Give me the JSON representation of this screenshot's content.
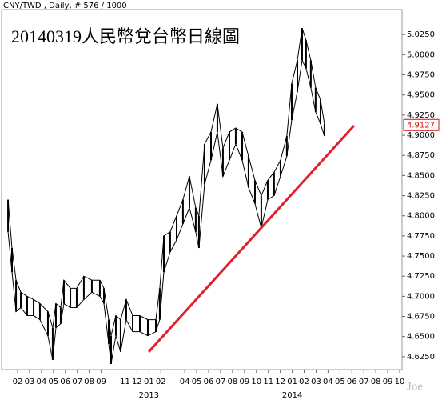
{
  "chart_data": {
    "type": "range-bars",
    "header": "CNY/TWD , Daily, # 576 / 1000",
    "title": "20140319人民幣兌台幣日線圖",
    "watermark": "Joe",
    "color": "#000000",
    "x": [
      1.2,
      1.53,
      1.87,
      2.27,
      2.8,
      3.34,
      3.87,
      4.54,
      4.94,
      5.21,
      5.61,
      5.88,
      6.42,
      6.95,
      7.55,
      8.22,
      8.89,
      9.23,
      9.63,
      9.83,
      10.23,
      10.63,
      11.1,
      11.64,
      12.24,
      12.91,
      13.58,
      13.91,
      14.25,
      14.78,
      15.32,
      15.85,
      16.39,
      16.92,
      17.19,
      17.66,
      18.2,
      18.73,
      19.2,
      19.74,
      20.27,
      20.81,
      21.34,
      21.88,
      22.41,
      22.95,
      23.48,
      24.02,
      24.55,
      24.96,
      25.43,
      25.83,
      26.16,
      26.56,
      26.96,
      27.37,
      27.7
    ],
    "series": [
      {
        "name": "high",
        "values": [
          4.82,
          4.76,
          4.72,
          4.705,
          4.7,
          4.696,
          4.691,
          4.681,
          4.661,
          4.691,
          4.686,
          4.72,
          4.71,
          4.71,
          4.725,
          4.72,
          4.72,
          4.71,
          4.671,
          4.651,
          4.676,
          4.671,
          4.696,
          4.676,
          4.676,
          4.671,
          4.671,
          4.71,
          4.775,
          4.78,
          4.8,
          4.82,
          4.849,
          4.81,
          4.8,
          4.889,
          4.904,
          4.939,
          4.884,
          4.904,
          4.909,
          4.904,
          4.874,
          4.844,
          4.825,
          4.844,
          4.854,
          4.869,
          4.899,
          4.964,
          4.993,
          5.033,
          5.018,
          4.993,
          4.959,
          4.944,
          4.914
        ]
      },
      {
        "name": "low",
        "values": [
          4.78,
          4.73,
          4.681,
          4.686,
          4.676,
          4.676,
          4.671,
          4.651,
          4.621,
          4.661,
          4.666,
          4.691,
          4.686,
          4.686,
          4.696,
          4.705,
          4.7,
          4.691,
          4.641,
          4.616,
          4.651,
          4.631,
          4.671,
          4.656,
          4.656,
          4.651,
          4.656,
          4.671,
          4.73,
          4.755,
          4.77,
          4.79,
          4.81,
          4.78,
          4.76,
          4.839,
          4.869,
          4.904,
          4.849,
          4.869,
          4.889,
          4.869,
          4.835,
          4.815,
          4.785,
          4.82,
          4.825,
          4.849,
          4.874,
          4.919,
          4.954,
          4.993,
          4.983,
          4.959,
          4.929,
          4.914,
          4.899
        ]
      }
    ],
    "trend_line": {
      "x": [
        12.98,
        30.18
      ],
      "y": [
        4.631,
        4.912
      ],
      "color": "#e0202c"
    },
    "last_price": 4.9127,
    "last_price_color": "#d01010",
    "xlim": [
      0.66,
      34.2
    ],
    "ylim": [
      4.609,
      5.056
    ],
    "yticks": [
      {
        "value": 4.625,
        "label": "4.6250"
      },
      {
        "value": 4.65,
        "label": "4.6500"
      },
      {
        "value": 4.675,
        "label": "4.6750"
      },
      {
        "value": 4.7,
        "label": "4.7000"
      },
      {
        "value": 4.725,
        "label": "4.7250"
      },
      {
        "value": 4.75,
        "label": "4.7500"
      },
      {
        "value": 4.775,
        "label": "4.7750"
      },
      {
        "value": 4.8,
        "label": "4.8000"
      },
      {
        "value": 4.825,
        "label": "4.8250"
      },
      {
        "value": 4.85,
        "label": "4.8500"
      },
      {
        "value": 4.875,
        "label": "4.8750"
      },
      {
        "value": 4.9,
        "label": "4.9000"
      },
      {
        "value": 4.925,
        "label": "4.9250"
      },
      {
        "value": 4.95,
        "label": "4.9500"
      },
      {
        "value": 4.975,
        "label": "4.9750"
      },
      {
        "value": 5.0,
        "label": "5.0000"
      },
      {
        "value": 5.025,
        "label": "5.0250"
      }
    ],
    "xticks": [
      {
        "value": 2,
        "label": "02"
      },
      {
        "value": 3,
        "label": "03"
      },
      {
        "value": 4,
        "label": "04"
      },
      {
        "value": 5,
        "label": "05"
      },
      {
        "value": 6,
        "label": "06"
      },
      {
        "value": 7,
        "label": "07"
      },
      {
        "value": 8,
        "label": "08"
      },
      {
        "value": 9,
        "label": "09"
      },
      {
        "value": 11,
        "label": "11"
      },
      {
        "value": 12,
        "label": "12"
      },
      {
        "value": 13,
        "label": "01"
      },
      {
        "value": 14,
        "label": "02"
      },
      {
        "value": 16,
        "label": "04"
      },
      {
        "value": 17,
        "label": "05"
      },
      {
        "value": 18,
        "label": "06"
      },
      {
        "value": 19,
        "label": "07"
      },
      {
        "value": 20,
        "label": "08"
      },
      {
        "value": 21,
        "label": "09"
      },
      {
        "value": 22,
        "label": "10"
      },
      {
        "value": 23,
        "label": "11"
      },
      {
        "value": 24,
        "label": "12"
      },
      {
        "value": 25,
        "label": "01"
      },
      {
        "value": 26,
        "label": "02"
      },
      {
        "value": 27,
        "label": "03"
      },
      {
        "value": 28,
        "label": "04"
      },
      {
        "value": 29,
        "label": "05"
      },
      {
        "value": 30,
        "label": "06"
      },
      {
        "value": 31,
        "label": "07"
      },
      {
        "value": 32,
        "label": "08"
      },
      {
        "value": 33,
        "label": "09"
      },
      {
        "value": 34,
        "label": "10"
      }
    ],
    "year_labels": [
      {
        "value": 13,
        "label": "2013"
      },
      {
        "value": 25,
        "label": "2014"
      }
    ]
  }
}
